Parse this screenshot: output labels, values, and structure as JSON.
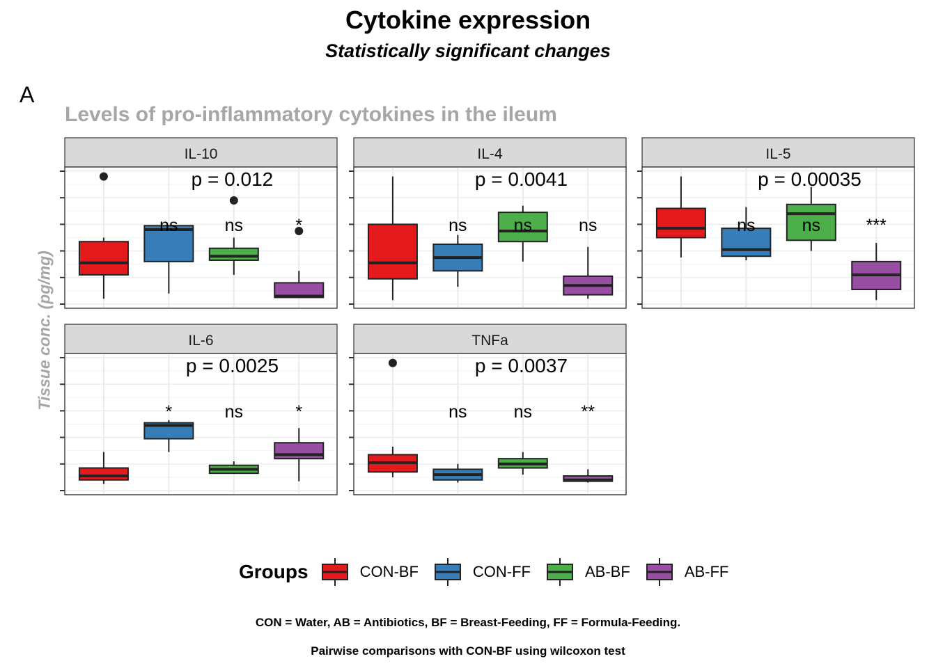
{
  "title": "Cytokine expression",
  "subtitle": "Statistically significant changes",
  "panel_tag": "A",
  "plot_title": "Levels of pro-inflammatory cytokines in the ileum",
  "ylabel": "Tissue conc. (pg/mg)",
  "legend": {
    "title": "Groups",
    "items": [
      {
        "label": "CON-BF",
        "color": "#e41a1c"
      },
      {
        "label": "CON-FF",
        "color": "#377eb8"
      },
      {
        "label": "AB-BF",
        "color": "#4daf4a"
      },
      {
        "label": "AB-FF",
        "color": "#984ea3"
      }
    ]
  },
  "captions": [
    "CON = Water, AB = Antibiotics, BF = Breast-Feeding, FF = Formula-Feeding.",
    "Pairwise comparisons with CON-BF using wilcoxon test"
  ],
  "chart_data": {
    "type": "box",
    "groups": [
      "CON-BF",
      "CON-FF",
      "AB-BF",
      "AB-FF"
    ],
    "colors": [
      "#e41a1c",
      "#377eb8",
      "#4daf4a",
      "#984ea3"
    ],
    "y_tick_labels_shown": false,
    "grid": true,
    "legend_position": "bottom",
    "facets": [
      {
        "name": "IL-10",
        "p_label": "p = 0.012",
        "ylim": [
          0,
          100
        ],
        "signif": [
          "",
          "ns",
          "ns",
          "*"
        ],
        "boxes": [
          {
            "min": 4,
            "q1": 22,
            "median": 31,
            "q3": 47,
            "max": 50,
            "outliers": [
              96
            ]
          },
          {
            "min": 8,
            "q1": 32,
            "median": 56,
            "q3": 59,
            "max": 59,
            "outliers": []
          },
          {
            "min": 22,
            "q1": 33,
            "median": 36,
            "q3": 42,
            "max": 50,
            "outliers": [
              78
            ]
          },
          {
            "min": 5,
            "q1": 5,
            "median": 6,
            "q3": 16,
            "max": 25,
            "outliers": [
              55
            ]
          }
        ]
      },
      {
        "name": "IL-4",
        "p_label": "p = 0.0041",
        "ylim": [
          0,
          100
        ],
        "signif": [
          "",
          "ns",
          "ns",
          "ns"
        ],
        "boxes": [
          {
            "min": 3,
            "q1": 19,
            "median": 31,
            "q3": 60,
            "max": 96,
            "outliers": []
          },
          {
            "min": 13,
            "q1": 25,
            "median": 35,
            "q3": 45,
            "max": 52,
            "outliers": []
          },
          {
            "min": 32,
            "q1": 47,
            "median": 55,
            "q3": 69,
            "max": 74,
            "outliers": []
          },
          {
            "min": 4,
            "q1": 7,
            "median": 14,
            "q3": 21,
            "max": 43,
            "outliers": []
          }
        ]
      },
      {
        "name": "IL-5",
        "p_label": "p = 0.00035",
        "ylim": [
          0,
          100
        ],
        "signif": [
          "",
          "ns",
          "ns",
          "***"
        ],
        "boxes": [
          {
            "min": 35,
            "q1": 50,
            "median": 57,
            "q3": 72,
            "max": 96,
            "outliers": []
          },
          {
            "min": 33,
            "q1": 36,
            "median": 41,
            "q3": 57,
            "max": 73,
            "outliers": []
          },
          {
            "min": 40,
            "q1": 48,
            "median": 68,
            "q3": 75,
            "max": 88,
            "outliers": []
          },
          {
            "min": 3,
            "q1": 11,
            "median": 22,
            "q3": 32,
            "max": 46,
            "outliers": []
          }
        ]
      },
      {
        "name": "IL-6",
        "p_label": "p = 0.0025",
        "ylim": [
          0,
          100
        ],
        "signif": [
          "",
          "*",
          "ns",
          "*"
        ],
        "boxes": [
          {
            "min": 5,
            "q1": 8,
            "median": 11,
            "q3": 17,
            "max": 29,
            "outliers": []
          },
          {
            "min": 29,
            "q1": 39,
            "median": 49,
            "q3": 51,
            "max": 53,
            "outliers": []
          },
          {
            "min": 13,
            "q1": 13,
            "median": 16,
            "q3": 19,
            "max": 22,
            "outliers": []
          },
          {
            "min": 7,
            "q1": 24,
            "median": 27,
            "q3": 36,
            "max": 47,
            "outliers": []
          }
        ]
      },
      {
        "name": "TNFa",
        "p_label": "p = 0.0037",
        "ylim": [
          0,
          100
        ],
        "signif": [
          "",
          "ns",
          "ns",
          "**"
        ],
        "boxes": [
          {
            "min": 10,
            "q1": 14,
            "median": 21,
            "q3": 27,
            "max": 33,
            "outliers": [
              96
            ]
          },
          {
            "min": 6,
            "q1": 8,
            "median": 12,
            "q3": 16,
            "max": 20,
            "outliers": []
          },
          {
            "min": 12,
            "q1": 17,
            "median": 20,
            "q3": 24,
            "max": 29,
            "outliers": []
          },
          {
            "min": 6,
            "q1": 7,
            "median": 8,
            "q3": 11,
            "max": 16,
            "outliers": []
          }
        ]
      }
    ]
  }
}
